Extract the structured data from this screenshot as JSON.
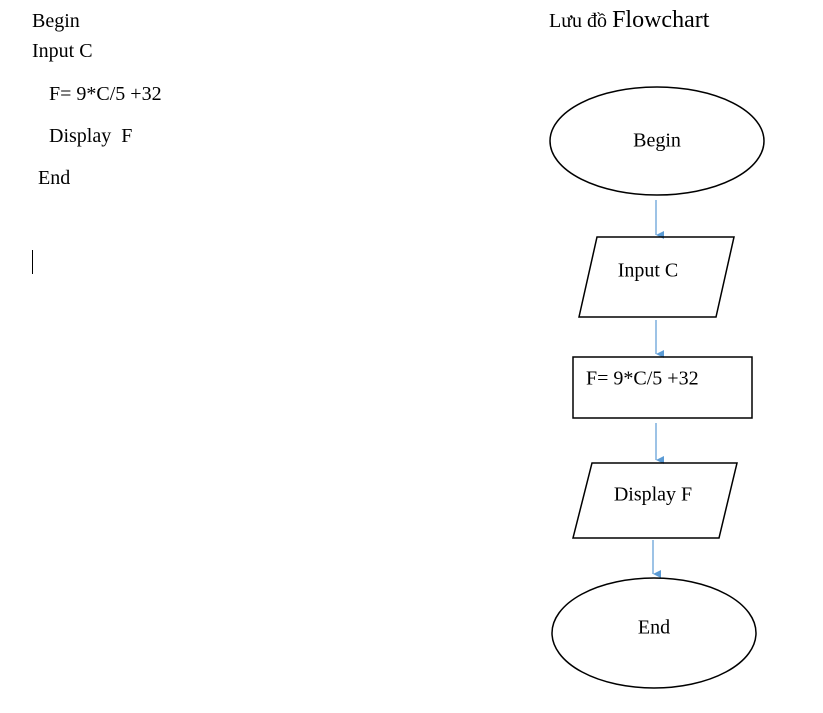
{
  "pseudocode": {
    "lines": [
      "Begin",
      "Input C",
      "F= 9*C/5 +32",
      "Display  F",
      "End"
    ]
  },
  "flowchart": {
    "title_prefix": "Lưu đồ ",
    "title_main": "Flowchart",
    "nodes": [
      {
        "id": "begin",
        "shape": "ellipse",
        "label": "Begin"
      },
      {
        "id": "input",
        "shape": "parallelogram",
        "label": "Input C"
      },
      {
        "id": "process",
        "shape": "rectangle",
        "label": "F= 9*C/5 +32"
      },
      {
        "id": "display",
        "shape": "parallelogram",
        "label": "Display F"
      },
      {
        "id": "end",
        "shape": "ellipse",
        "label": "End"
      }
    ],
    "edges": [
      {
        "from": "begin",
        "to": "input"
      },
      {
        "from": "input",
        "to": "process"
      },
      {
        "from": "process",
        "to": "display"
      },
      {
        "from": "display",
        "to": "end"
      }
    ],
    "colors": {
      "shape_stroke": "#000000",
      "arrow": "#5b9bd5",
      "background": "#ffffff"
    }
  }
}
